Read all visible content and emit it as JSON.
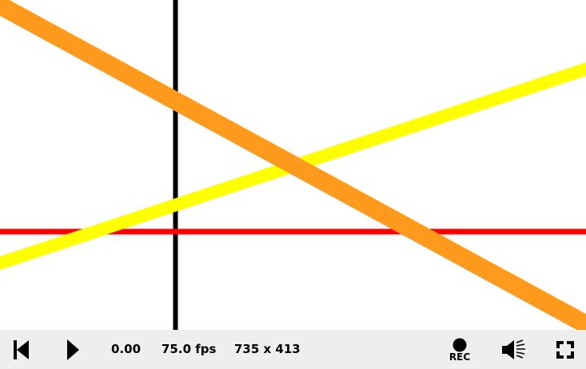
{
  "canvas": {
    "background": "#ffffff",
    "lines": [
      {
        "name": "black-vertical-line",
        "color": "#000000"
      },
      {
        "name": "red-horizontal-line",
        "color": "#ff0000"
      },
      {
        "name": "yellow-diagonal-line",
        "color": "#ffff00"
      },
      {
        "name": "orange-diagonal-line",
        "color": "#ff9a1c"
      }
    ]
  },
  "toolbar": {
    "time": "0.00",
    "fps": "75.0 fps",
    "resolution": "735 x 413",
    "rec_label": "REC",
    "icons": {
      "restart": "skip-to-start-icon",
      "play": "play-icon",
      "record": "record-icon",
      "volume": "volume-icon",
      "fullscreen": "fullscreen-icon"
    }
  }
}
